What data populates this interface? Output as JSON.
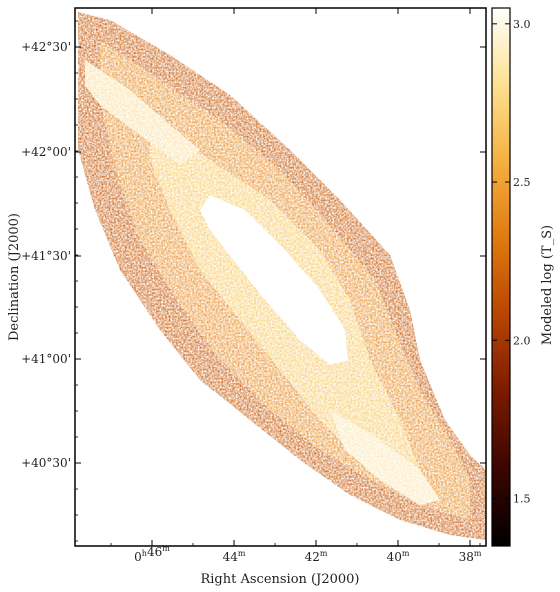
{
  "chart_data": {
    "type": "heatmap",
    "title": "",
    "xlabel": "Right Ascension (J2000)",
    "ylabel": "Declination (J2000)",
    "colorbar_label": "Modeled log (T_S)",
    "x_ticks": [
      {
        "h": "0",
        "m": "46",
        "label_prefix": "0",
        "label_sup_h": "h",
        "label_mid": "46",
        "label_sup_m": "m"
      },
      {
        "h": "",
        "m": "44",
        "label_prefix": "",
        "label_sup_h": "",
        "label_mid": "44",
        "label_sup_m": "m"
      },
      {
        "h": "",
        "m": "42",
        "label_prefix": "",
        "label_sup_h": "",
        "label_mid": "42",
        "label_sup_m": "m"
      },
      {
        "h": "",
        "m": "40",
        "label_prefix": "",
        "label_sup_h": "",
        "label_mid": "40",
        "label_sup_m": "m"
      },
      {
        "h": "",
        "m": "38",
        "label_prefix": "",
        "label_sup_h": "",
        "label_mid": "38",
        "label_sup_m": "m"
      }
    ],
    "y_ticks": [
      "+42°30'",
      "+42°00'",
      "+41°30'",
      "+41°00'",
      "+40°30'"
    ],
    "colorbar_ticks": [
      3.0,
      2.5,
      2.0,
      1.5
    ],
    "colorbar_tick_labels": [
      "3.0",
      "2.5",
      "2.0",
      "1.5"
    ],
    "colorbar_range": [
      1.35,
      3.05
    ],
    "colormap": [
      "#000000",
      "#3a0500",
      "#7a1a00",
      "#b84400",
      "#e07a10",
      "#f5b040",
      "#fde090",
      "#ffffff"
    ],
    "colormap_name": "heat"
  }
}
